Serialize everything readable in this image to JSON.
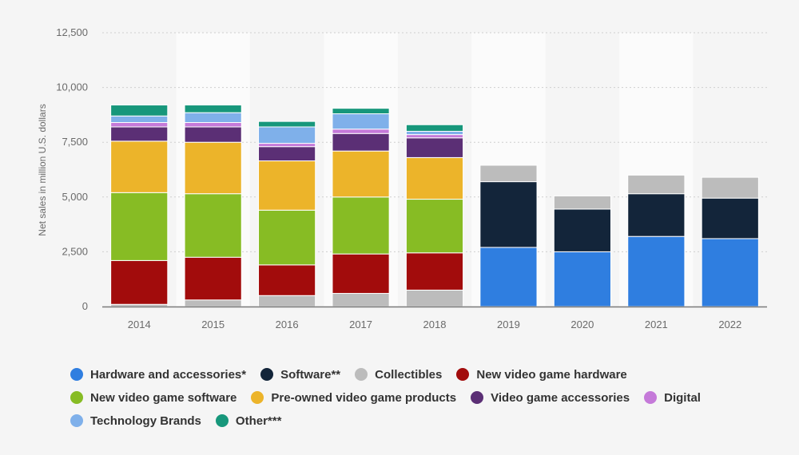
{
  "chart_data": {
    "type": "bar",
    "stacked": true,
    "categories": [
      "2014",
      "2015",
      "2016",
      "2017",
      "2018",
      "2019",
      "2020",
      "2021",
      "2022"
    ],
    "ylabel": "Net sales in million U.S. dollars",
    "ylim": [
      0,
      12500
    ],
    "yticks": [
      0,
      2500,
      5000,
      7500,
      10000,
      12500
    ],
    "ytick_labels": [
      "0",
      "2,500",
      "5,000",
      "7,500",
      "10,000",
      "12,500"
    ],
    "grid": true,
    "legend_position": "bottom",
    "series": [
      {
        "name": "Hardware and accessories*",
        "color": "#2f7ee0",
        "values": [
          0,
          0,
          0,
          0,
          0,
          2700,
          2500,
          3200,
          3100
        ]
      },
      {
        "name": "Software**",
        "color": "#13253a",
        "values": [
          0,
          0,
          0,
          0,
          0,
          3000,
          1950,
          1950,
          1850
        ]
      },
      {
        "name": "Collectibles",
        "color": "#bcbcbc",
        "values": [
          100,
          300,
          500,
          600,
          750,
          750,
          600,
          850,
          950
        ]
      },
      {
        "name": "New video game hardware",
        "color": "#a20c0c",
        "values": [
          2000,
          1950,
          1400,
          1800,
          1700,
          0,
          0,
          0,
          0
        ]
      },
      {
        "name": "New video game software",
        "color": "#87bc24",
        "values": [
          3100,
          2900,
          2500,
          2600,
          2450,
          0,
          0,
          0,
          0
        ]
      },
      {
        "name": "Pre-owned video game products",
        "color": "#ecb42a",
        "values": [
          2350,
          2350,
          2250,
          2100,
          1900,
          0,
          0,
          0,
          0
        ]
      },
      {
        "name": "Video game accessories",
        "color": "#5b2f75",
        "values": [
          650,
          700,
          650,
          800,
          900,
          0,
          0,
          0,
          0
        ]
      },
      {
        "name": "Digital",
        "color": "#c57ad9",
        "values": [
          200,
          200,
          150,
          200,
          150,
          0,
          0,
          0,
          0
        ]
      },
      {
        "name": "Technology Brands",
        "color": "#7fb0ea",
        "values": [
          300,
          450,
          750,
          700,
          150,
          0,
          0,
          0,
          0
        ]
      },
      {
        "name": "Other***",
        "color": "#17977b",
        "values": [
          500,
          350,
          250,
          250,
          300,
          0,
          0,
          0,
          0
        ]
      }
    ]
  }
}
